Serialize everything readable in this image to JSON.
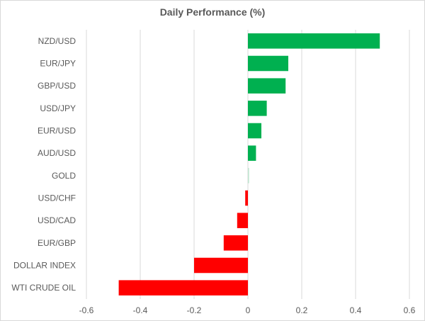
{
  "title": "Daily Performance (%)",
  "chart_data": {
    "type": "bar",
    "orientation": "horizontal",
    "title": "Daily Performance (%)",
    "xlabel": "",
    "ylabel": "",
    "xlim": [
      -0.6,
      0.6
    ],
    "xticks": [
      -0.6,
      -0.4,
      -0.2,
      0,
      0.2,
      0.4,
      0.6
    ],
    "xtick_labels": [
      "-0.6",
      "-0.4",
      "-0.2",
      "0",
      "0.2",
      "0.4",
      "0.6"
    ],
    "grid": "vertical",
    "legend": "none",
    "categories": [
      "NZD/USD",
      "EUR/JPY",
      "GBP/USD",
      "USD/JPY",
      "EUR/USD",
      "AUD/USD",
      "GOLD",
      "USD/CHF",
      "USD/CAD",
      "EUR/GBP",
      "DOLLAR INDEX",
      "WTI CRUDE OIL"
    ],
    "values": [
      0.49,
      0.15,
      0.14,
      0.07,
      0.05,
      0.03,
      0.005,
      -0.01,
      -0.04,
      -0.09,
      -0.2,
      -0.48
    ],
    "colors": {
      "positive": "#00b050",
      "negative": "#ff0000",
      "grid": "#d9d9d9",
      "text": "#595959"
    }
  }
}
